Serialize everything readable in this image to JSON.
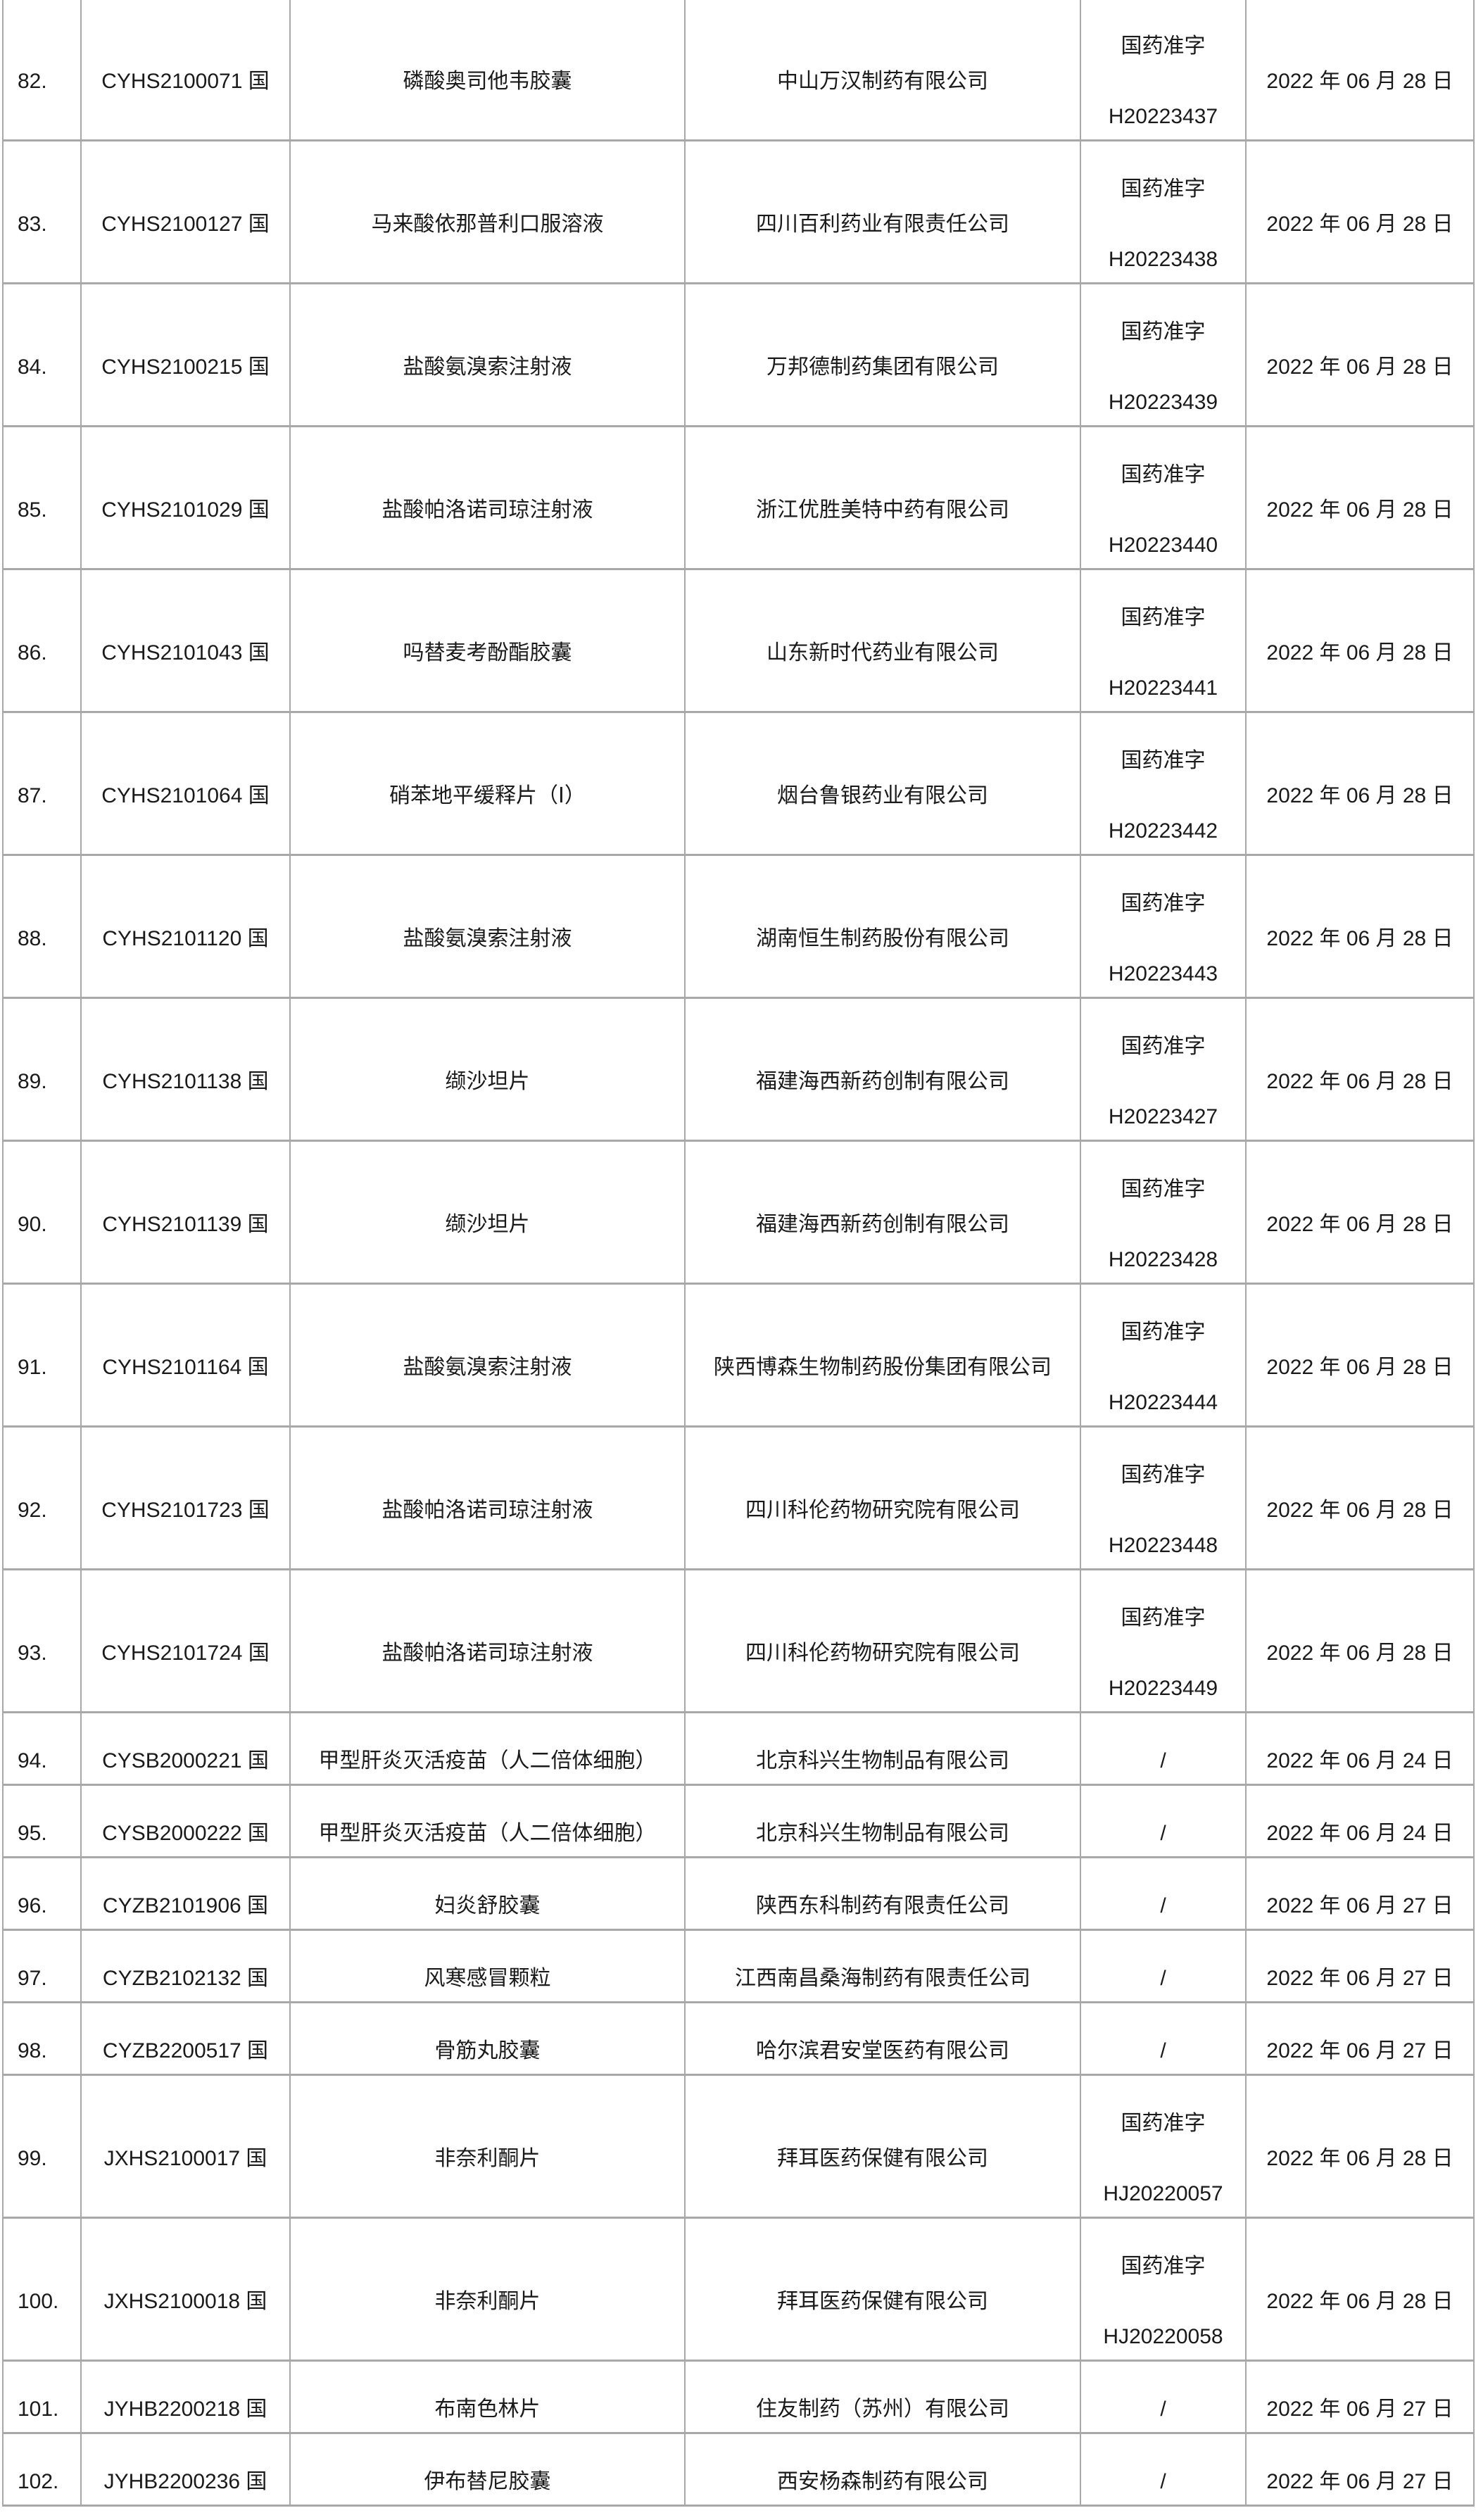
{
  "rows": [
    {
      "no": "82.",
      "code": "CYHS2100071 国",
      "name": "磷酸奥司他韦胶囊",
      "company": "中山万汉制药有限公司",
      "approval_prefix": "国药准字",
      "approval_no": "H20223437",
      "date": "2022 年 06 月 28 日"
    },
    {
      "no": "83.",
      "code": "CYHS2100127 国",
      "name": "马来酸依那普利口服溶液",
      "company": "四川百利药业有限责任公司",
      "approval_prefix": "国药准字",
      "approval_no": "H20223438",
      "date": "2022 年 06 月 28 日"
    },
    {
      "no": "84.",
      "code": "CYHS2100215 国",
      "name": "盐酸氨溴索注射液",
      "company": "万邦德制药集团有限公司",
      "approval_prefix": "国药准字",
      "approval_no": "H20223439",
      "date": "2022 年 06 月 28 日"
    },
    {
      "no": "85.",
      "code": "CYHS2101029 国",
      "name": "盐酸帕洛诺司琼注射液",
      "company": "浙江优胜美特中药有限公司",
      "approval_prefix": "国药准字",
      "approval_no": "H20223440",
      "date": "2022 年 06 月 28 日"
    },
    {
      "no": "86.",
      "code": "CYHS2101043 国",
      "name": "吗替麦考酚酯胶囊",
      "company": "山东新时代药业有限公司",
      "approval_prefix": "国药准字",
      "approval_no": "H20223441",
      "date": "2022 年 06 月 28 日"
    },
    {
      "no": "87.",
      "code": "CYHS2101064 国",
      "name": "硝苯地平缓释片（Ⅰ）",
      "company": "烟台鲁银药业有限公司",
      "approval_prefix": "国药准字",
      "approval_no": "H20223442",
      "date": "2022 年 06 月 28 日"
    },
    {
      "no": "88.",
      "code": "CYHS2101120 国",
      "name": "盐酸氨溴索注射液",
      "company": "湖南恒生制药股份有限公司",
      "approval_prefix": "国药准字",
      "approval_no": "H20223443",
      "date": "2022 年 06 月 28 日"
    },
    {
      "no": "89.",
      "code": "CYHS2101138 国",
      "name": "缬沙坦片",
      "company": "福建海西新药创制有限公司",
      "approval_prefix": "国药准字",
      "approval_no": "H20223427",
      "date": "2022 年 06 月 28 日"
    },
    {
      "no": "90.",
      "code": "CYHS2101139 国",
      "name": "缬沙坦片",
      "company": "福建海西新药创制有限公司",
      "approval_prefix": "国药准字",
      "approval_no": "H20223428",
      "date": "2022 年 06 月 28 日"
    },
    {
      "no": "91.",
      "code": "CYHS2101164 国",
      "name": "盐酸氨溴索注射液",
      "company": "陕西博森生物制药股份集团有限公司",
      "approval_prefix": "国药准字",
      "approval_no": "H20223444",
      "date": "2022 年 06 月 28 日"
    },
    {
      "no": "92.",
      "code": "CYHS2101723 国",
      "name": "盐酸帕洛诺司琼注射液",
      "company": "四川科伦药物研究院有限公司",
      "approval_prefix": "国药准字",
      "approval_no": "H20223448",
      "date": "2022 年 06 月 28 日"
    },
    {
      "no": "93.",
      "code": "CYHS2101724 国",
      "name": "盐酸帕洛诺司琼注射液",
      "company": "四川科伦药物研究院有限公司",
      "approval_prefix": "国药准字",
      "approval_no": "H20223449",
      "date": "2022 年 06 月 28 日"
    },
    {
      "no": "94.",
      "code": "CYSB2000221 国",
      "name": "甲型肝炎灭活疫苗（人二倍体细胞）",
      "company": "北京科兴生物制品有限公司",
      "approval": "/",
      "date": "2022 年 06 月 24 日"
    },
    {
      "no": "95.",
      "code": "CYSB2000222 国",
      "name": "甲型肝炎灭活疫苗（人二倍体细胞）",
      "company": "北京科兴生物制品有限公司",
      "approval": "/",
      "date": "2022 年 06 月 24 日"
    },
    {
      "no": "96.",
      "code": "CYZB2101906 国",
      "name": "妇炎舒胶囊",
      "company": "陕西东科制药有限责任公司",
      "approval": "/",
      "date": "2022 年 06 月 27 日"
    },
    {
      "no": "97.",
      "code": "CYZB2102132 国",
      "name": "风寒感冒颗粒",
      "company": "江西南昌桑海制药有限责任公司",
      "approval": "/",
      "date": "2022 年 06 月 27 日"
    },
    {
      "no": "98.",
      "code": "CYZB2200517 国",
      "name": "骨筋丸胶囊",
      "company": "哈尔滨君安堂医药有限公司",
      "approval": "/",
      "date": "2022 年 06 月 27 日"
    },
    {
      "no": "99.",
      "code": "JXHS2100017 国",
      "name": "非奈利酮片",
      "company": "拜耳医药保健有限公司",
      "approval_prefix": "国药准字",
      "approval_no": "HJ20220057",
      "date": "2022 年 06 月 28 日"
    },
    {
      "no": "100.",
      "code": "JXHS2100018 国",
      "name": "非奈利酮片",
      "company": "拜耳医药保健有限公司",
      "approval_prefix": "国药准字",
      "approval_no": "HJ20220058",
      "date": "2022 年 06 月 28 日"
    },
    {
      "no": "101.",
      "code": "JYHB2200218 国",
      "name": "布南色林片",
      "company": "住友制药（苏州）有限公司",
      "approval": "/",
      "date": "2022 年 06 月 27 日"
    },
    {
      "no": "102.",
      "code": "JYHB2200236 国",
      "name": "伊布替尼胶囊",
      "company": "西安杨森制药有限公司",
      "approval": "/",
      "date": "2022 年 06 月 27 日"
    }
  ]
}
